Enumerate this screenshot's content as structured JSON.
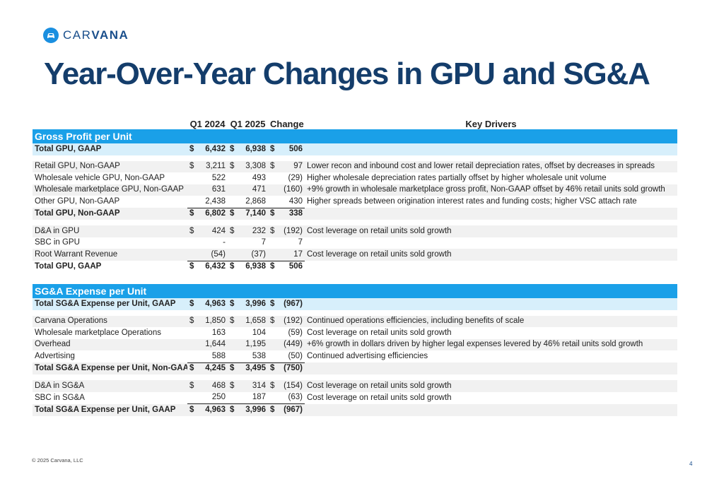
{
  "brand": {
    "logo_text_light": "CAR",
    "logo_text_bold": "VANA"
  },
  "title": "Year-Over-Year Changes in GPU and SG&A",
  "headers": {
    "q1_2024": "Q1 2024",
    "q1_2025": "Q1 2025",
    "change": "Change",
    "drivers": "Key Drivers"
  },
  "currency_symbol": "$",
  "rows": [
    {
      "kind": "section",
      "label": "Gross Profit per Unit"
    },
    {
      "kind": "total-lb",
      "label": "Total GPU, GAAP",
      "q1_2024": "6,432",
      "q1_2025": "6,938",
      "change": "506",
      "cur": true,
      "driver": ""
    },
    {
      "kind": "spacer"
    },
    {
      "kind": "band",
      "label": "Retail GPU, Non-GAAP",
      "q1_2024": "3,211",
      "q1_2025": "3,308",
      "change": "97",
      "cur": true,
      "driver": "Lower recon and inbound cost and lower retail depreciation rates, offset by decreases in spreads"
    },
    {
      "kind": "plain",
      "label": "Wholesale vehicle GPU, Non-GAAP",
      "q1_2024": "522",
      "q1_2025": "493",
      "change": "(29)",
      "cur": false,
      "driver": "Higher wholesale depreciation rates partially offset by higher wholesale unit volume"
    },
    {
      "kind": "band",
      "label": "Wholesale marketplace GPU, Non-GAAP",
      "q1_2024": "631",
      "q1_2025": "471",
      "change": "(160)",
      "cur": false,
      "driver": "+9% growth in wholesale marketplace gross profit, Non-GAAP offset by 46% retail units sold growth"
    },
    {
      "kind": "plain-ul",
      "label": "Other GPU, Non-GAAP",
      "q1_2024": "2,438",
      "q1_2025": "2,868",
      "change": "430",
      "cur": false,
      "driver": "Higher spreads between origination interest rates and funding costs; higher VSC attach rate"
    },
    {
      "kind": "total-band",
      "label": "Total GPU, Non-GAAP",
      "q1_2024": "6,802",
      "q1_2025": "7,140",
      "change": "338",
      "cur": true,
      "driver": ""
    },
    {
      "kind": "spacer"
    },
    {
      "kind": "band",
      "label": "D&A in GPU",
      "q1_2024": "424",
      "q1_2025": "232",
      "change": "(192)",
      "cur": true,
      "driver": "Cost leverage on retail units sold growth"
    },
    {
      "kind": "plain",
      "label": "SBC in GPU",
      "q1_2024": "-",
      "q1_2025": "7",
      "change": "7",
      "cur": false,
      "driver": ""
    },
    {
      "kind": "band-ul",
      "label": "Root Warrant Revenue",
      "q1_2024": "(54)",
      "q1_2025": "(37)",
      "change": "17",
      "cur": false,
      "driver": "Cost leverage on retail units sold growth"
    },
    {
      "kind": "total",
      "label": "Total GPU, GAAP",
      "q1_2024": "6,432",
      "q1_2025": "6,938",
      "change": "506",
      "cur": true,
      "driver": ""
    },
    {
      "kind": "spacer"
    },
    {
      "kind": "spacer"
    },
    {
      "kind": "section",
      "label": "SG&A Expense per Unit"
    },
    {
      "kind": "total-lb",
      "label": "Total SG&A Expense per Unit, GAAP",
      "q1_2024": "4,963",
      "q1_2025": "3,996",
      "change": "(967)",
      "cur": true,
      "driver": ""
    },
    {
      "kind": "spacer"
    },
    {
      "kind": "band",
      "label": "Carvana Operations",
      "q1_2024": "1,850",
      "q1_2025": "1,658",
      "change": "(192)",
      "cur": true,
      "driver": "Continued operations efficiencies, including benefits of scale"
    },
    {
      "kind": "plain",
      "label": "Wholesale marketplace Operations",
      "q1_2024": "163",
      "q1_2025": "104",
      "change": "(59)",
      "cur": false,
      "driver": "Cost leverage on retail units sold growth"
    },
    {
      "kind": "band",
      "label": "Overhead",
      "q1_2024": "1,644",
      "q1_2025": "1,195",
      "change": "(449)",
      "cur": false,
      "driver": "+6% growth in dollars driven by higher legal expenses levered by 46% retail units sold growth"
    },
    {
      "kind": "plain-ul",
      "label": "Advertising",
      "q1_2024": "588",
      "q1_2025": "538",
      "change": "(50)",
      "cur": false,
      "driver": "Continued advertising efficiencies"
    },
    {
      "kind": "total-band",
      "label": "Total SG&A Expense per Unit, Non-GAAP",
      "q1_2024": "4,245",
      "q1_2025": "3,495",
      "change": "(750)",
      "cur": true,
      "driver": ""
    },
    {
      "kind": "spacer"
    },
    {
      "kind": "band",
      "label": "D&A in SG&A",
      "q1_2024": "468",
      "q1_2025": "314",
      "change": "(154)",
      "cur": true,
      "driver": "Cost leverage on retail units sold growth"
    },
    {
      "kind": "plain-ul",
      "label": "SBC in SG&A",
      "q1_2024": "250",
      "q1_2025": "187",
      "change": "(63)",
      "cur": false,
      "driver": "Cost leverage on retail units sold growth"
    },
    {
      "kind": "total-band",
      "label": "Total SG&A Expense per Unit, GAAP",
      "q1_2024": "4,963",
      "q1_2025": "3,996",
      "change": "(967)",
      "cur": true,
      "driver": ""
    }
  ],
  "footer": "© 2025 Carvana, LLC",
  "page_number": "4",
  "colors": {
    "title": "#143d6b",
    "section_bar": "#1aa0e8",
    "light_band": "#d7effb",
    "logo": "#1a8fe0"
  }
}
